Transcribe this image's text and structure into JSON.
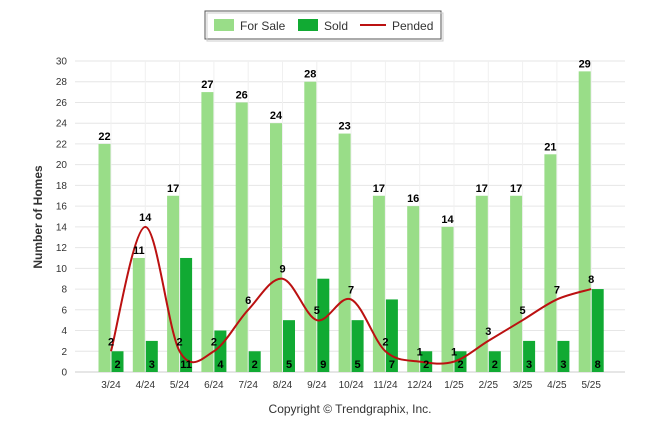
{
  "chart_data": {
    "type": "bar",
    "categories": [
      "3/24",
      "4/24",
      "5/24",
      "6/24",
      "7/24",
      "8/24",
      "9/24",
      "10/24",
      "11/24",
      "12/24",
      "1/25",
      "2/25",
      "3/25",
      "4/25",
      "5/25"
    ],
    "series": [
      {
        "name": "For Sale",
        "type": "bar",
        "color": "#99dd88",
        "values": [
          22,
          11,
          17,
          27,
          26,
          24,
          28,
          23,
          17,
          16,
          14,
          17,
          17,
          21,
          29
        ]
      },
      {
        "name": "Sold",
        "type": "bar",
        "color": "#11aa33",
        "values": [
          2,
          3,
          11,
          4,
          2,
          5,
          9,
          5,
          7,
          2,
          2,
          2,
          3,
          3,
          8
        ]
      },
      {
        "name": "Pended",
        "type": "line",
        "color": "#bb1111",
        "values": [
          2,
          14,
          2,
          2,
          6,
          9,
          5,
          7,
          2,
          1,
          1,
          3,
          5,
          7,
          8
        ]
      }
    ],
    "ylabel": "Number of Homes",
    "ylim": [
      0,
      30
    ],
    "yticks": [
      0,
      2,
      4,
      6,
      8,
      10,
      12,
      14,
      16,
      18,
      20,
      22,
      24,
      26,
      28,
      30
    ],
    "grid": true,
    "legend_position": "top-center",
    "copyright": "Copyright © Trendgraphix, Inc."
  }
}
